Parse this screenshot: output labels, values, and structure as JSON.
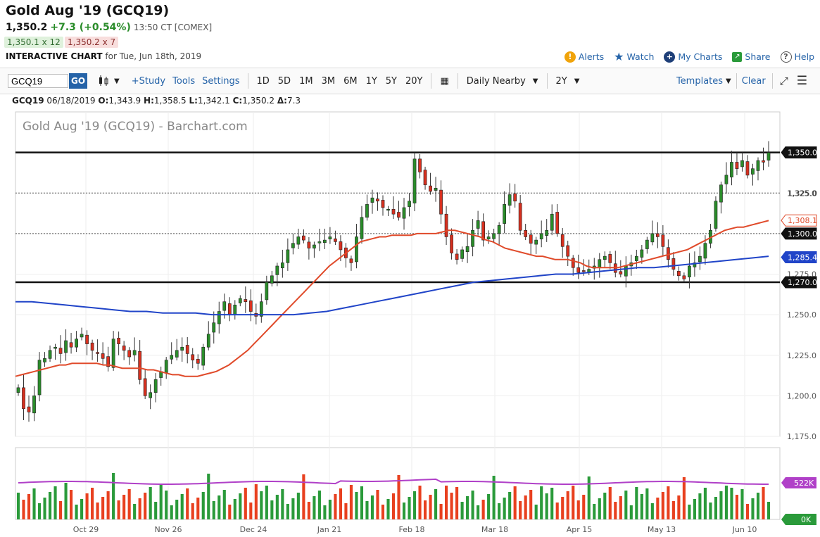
{
  "header": {
    "title": "Gold Aug '19 (GCQ19)",
    "last": "1,350.2",
    "change": "+7.3 (+0.54%)",
    "time": "13:50 CT [COMEX]",
    "bid": "1,350.1 x 12",
    "ask": "1,350.2 x 7",
    "interactive_label": "INTERACTIVE CHART",
    "interactive_date": "for Tue, Jun 18th, 2019"
  },
  "top_links": [
    {
      "label": "Alerts",
      "icon": "exclamation-icon",
      "color": "#f0a30a"
    },
    {
      "label": "Watch",
      "icon": "star-icon",
      "color": "#2563a8"
    },
    {
      "label": "My Charts",
      "icon": "plus-circle-icon",
      "color": "#1e3f78"
    },
    {
      "label": "Share",
      "icon": "share-icon",
      "color": "#2a9a3a"
    },
    {
      "label": "Help",
      "icon": "question-icon",
      "color": "#555555"
    }
  ],
  "toolbar": {
    "symbol": "GCQ19",
    "go": "GO",
    "study": "+Study",
    "tools": "Tools",
    "settings": "Settings",
    "periods": [
      "1D",
      "5D",
      "1M",
      "3M",
      "6M",
      "1Y",
      "5Y",
      "20Y"
    ],
    "aggregation": "Daily Nearby",
    "range": "2Y",
    "templates": "Templates",
    "clear": "Clear"
  },
  "ohlc_line": {
    "symbol": "GCQ19",
    "date": "06/18/2019",
    "o_label": "O:",
    "o": "1,343.9",
    "h_label": "H:",
    "h": "1,358.5",
    "l_label": "L:",
    "l": "1,342.1",
    "c_label": "C:",
    "c": "1,350.2",
    "d_label": "Δ:",
    "d": "7.3"
  },
  "chart_data": {
    "type": "candlestick",
    "title": "Gold Aug '19 (GCQ19) - Barchart.com",
    "ylim": [
      1175,
      1375
    ],
    "y_ticks": [
      "1,175.0",
      "1,200.0",
      "1,225.0",
      "1,250.0",
      "1,275.0",
      "1,300.0",
      "1,325.0",
      "1,350.0"
    ],
    "x_ticks": [
      "Oct 29",
      "Nov 26",
      "Dec 24",
      "Jan 21",
      "Feb 18",
      "Mar 18",
      "Apr 15",
      "May 13",
      "Jun 10"
    ],
    "grid": true,
    "price_labels": [
      {
        "text": "1,350.0",
        "value": 1350,
        "style": "dark"
      },
      {
        "text": "1,325.0",
        "value": 1325,
        "style": "tick"
      },
      {
        "text": "1,308.1",
        "value": 1308.1,
        "style": "red"
      },
      {
        "text": "1,300.0",
        "value": 1300,
        "style": "dark"
      },
      {
        "text": "1,285.4",
        "value": 1285.4,
        "style": "blue"
      },
      {
        "text": "1,270.0",
        "value": 1270,
        "style": "dark"
      }
    ],
    "horizontal_lines": [
      {
        "value": 1350,
        "style": "thick"
      },
      {
        "value": 1325,
        "style": "dashed"
      },
      {
        "value": 1300,
        "style": "dashed"
      },
      {
        "value": 1270,
        "style": "thick"
      }
    ],
    "closes": [
      1205,
      1192,
      1190,
      1200,
      1222,
      1223,
      1228,
      1230,
      1226,
      1234,
      1230,
      1235,
      1238,
      1232,
      1228,
      1226,
      1223,
      1218,
      1235,
      1232,
      1228,
      1224,
      1228,
      1210,
      1200,
      1202,
      1210,
      1215,
      1222,
      1225,
      1228,
      1230,
      1226,
      1222,
      1220,
      1230,
      1238,
      1245,
      1252,
      1258,
      1250,
      1256,
      1260,
      1258,
      1252,
      1249,
      1258,
      1270,
      1274,
      1280,
      1282,
      1290,
      1294,
      1298,
      1296,
      1291,
      1293,
      1295,
      1296,
      1298,
      1295,
      1290,
      1285,
      1282,
      1298,
      1310,
      1318,
      1322,
      1320,
      1316,
      1315,
      1312,
      1310,
      1316,
      1320,
      1346,
      1338,
      1330,
      1326,
      1328,
      1312,
      1298,
      1288,
      1284,
      1290,
      1292,
      1302,
      1308,
      1296,
      1298,
      1300,
      1305,
      1318,
      1324,
      1320,
      1302,
      1298,
      1294,
      1296,
      1300,
      1302,
      1312,
      1300,
      1292,
      1286,
      1279,
      1276,
      1277,
      1278,
      1280,
      1284,
      1286,
      1282,
      1276,
      1275,
      1280,
      1282,
      1286,
      1290,
      1296,
      1300,
      1298,
      1292,
      1284,
      1278,
      1274,
      1272,
      1280,
      1282,
      1286,
      1294,
      1302,
      1320,
      1330,
      1336,
      1344,
      1340,
      1345,
      1336,
      1340,
      1345,
      1344,
      1350
    ],
    "ma50": [
      1212,
      1213,
      1214,
      1215,
      1216,
      1217,
      1218,
      1219,
      1219,
      1220,
      1220,
      1220,
      1220,
      1220,
      1219,
      1219,
      1218,
      1217,
      1217,
      1217,
      1217,
      1216,
      1216,
      1215,
      1214,
      1213,
      1213,
      1212,
      1212,
      1212,
      1213,
      1214,
      1215,
      1217,
      1219,
      1222,
      1225,
      1228,
      1232,
      1236,
      1240,
      1244,
      1248,
      1252,
      1256,
      1260,
      1264,
      1268,
      1272,
      1276,
      1280,
      1283,
      1286,
      1289,
      1292,
      1295,
      1296,
      1297,
      1298,
      1298,
      1299,
      1299,
      1299,
      1299,
      1300,
      1300,
      1300,
      1300,
      1301,
      1302,
      1302,
      1301,
      1300,
      1299,
      1298,
      1296,
      1295,
      1293,
      1291,
      1290,
      1289,
      1288,
      1287,
      1286,
      1286,
      1285,
      1284,
      1284,
      1284,
      1283,
      1282,
      1280,
      1279,
      1279,
      1279,
      1279,
      1279,
      1280,
      1281,
      1282,
      1283,
      1284,
      1285,
      1286,
      1287,
      1288,
      1289,
      1290,
      1292,
      1294,
      1296,
      1298,
      1300,
      1302,
      1303,
      1304,
      1304,
      1305,
      1306,
      1307,
      1308
    ],
    "ma200": [
      1258,
      1258,
      1257,
      1256,
      1255,
      1254,
      1253,
      1252,
      1252,
      1251,
      1251,
      1251,
      1250,
      1250,
      1250,
      1250,
      1250,
      1250,
      1251,
      1252,
      1254,
      1256,
      1258,
      1260,
      1262,
      1264,
      1266,
      1268,
      1270,
      1271,
      1272,
      1273,
      1274,
      1275,
      1275,
      1276,
      1277,
      1278,
      1279,
      1279,
      1280,
      1281,
      1282,
      1283,
      1284,
      1285,
      1286
    ],
    "volume_ma_label": "522K",
    "volume_zero_label": "0K"
  }
}
